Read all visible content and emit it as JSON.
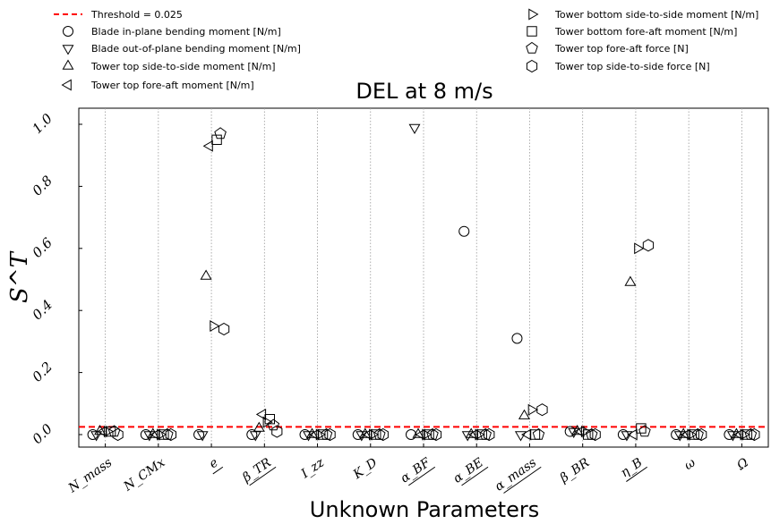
{
  "chart_data": {
    "type": "scatter",
    "title": "DEL at 8 m/s",
    "xlabel": "Unknown Parameters",
    "ylabel": "S^T",
    "ylim": [
      0,
      1.0
    ],
    "yticks": [
      "0.0",
      "0.2",
      "0.4",
      "0.6",
      "0.8",
      "1.0"
    ],
    "ytick_values": [
      0,
      0.2,
      0.4,
      0.6,
      0.8,
      1.0
    ],
    "grid": "vertical-dotted",
    "legend_placement": "top",
    "threshold": {
      "label": "Threshold = 0.025",
      "value": 0.025,
      "color": "#ff0000"
    },
    "categories": [
      "N_mass",
      "N_CMx",
      "e",
      "β_TR",
      "I_zz",
      "K_D",
      "α_BF",
      "α_BE",
      "α_mass",
      "β_BR",
      "η_B",
      "ω",
      "Ω"
    ],
    "underlined": [
      false,
      false,
      true,
      true,
      false,
      false,
      true,
      true,
      true,
      false,
      true,
      false,
      false
    ],
    "series": [
      {
        "name": "Blade in-plane bending moment [N/m]",
        "marker": "circle",
        "values": [
          0.0,
          0.0,
          0.0,
          0.0,
          0.0,
          0.0,
          0.0,
          0.655,
          0.31,
          0.01,
          0.0,
          0.0,
          0.0
        ]
      },
      {
        "name": "Blade out-of-plane bending moment [N/m]",
        "marker": "triangle-down",
        "values": [
          0.0,
          0.0,
          0.0,
          0.0,
          0.0,
          0.0,
          0.99,
          0.0,
          0.0,
          0.01,
          0.0,
          0.0,
          0.0
        ]
      },
      {
        "name": "Tower top side-to-side moment [N/m]",
        "marker": "triangle-up",
        "values": [
          0.01,
          0.0,
          0.51,
          0.02,
          0.0,
          0.0,
          0.0,
          0.0,
          0.06,
          0.01,
          0.49,
          0.0,
          0.0
        ]
      },
      {
        "name": "Tower top fore-aft moment [N/m]",
        "marker": "triangle-left",
        "values": [
          0.01,
          0.0,
          0.93,
          0.065,
          0.0,
          0.0,
          0.0,
          0.0,
          0.0,
          0.01,
          0.0,
          0.0,
          0.0
        ]
      },
      {
        "name": "Tower bottom side-to-side moment [N/m]",
        "marker": "triangle-right",
        "values": [
          0.01,
          0.0,
          0.35,
          0.04,
          0.0,
          0.0,
          0.0,
          0.0,
          0.08,
          0.01,
          0.6,
          0.0,
          0.0
        ]
      },
      {
        "name": "Tower bottom fore-aft moment [N/m]",
        "marker": "square",
        "values": [
          0.01,
          0.0,
          0.95,
          0.05,
          0.0,
          0.0,
          0.0,
          0.0,
          0.0,
          0.0,
          0.02,
          0.0,
          0.0
        ]
      },
      {
        "name": "Tower top fore-aft force [N]",
        "marker": "pentagon",
        "values": [
          0.01,
          0.0,
          0.97,
          0.03,
          0.0,
          0.0,
          0.0,
          0.0,
          0.0,
          0.0,
          0.01,
          0.0,
          0.0
        ]
      },
      {
        "name": "Tower top side-to-side force [N]",
        "marker": "hexagon",
        "values": [
          0.0,
          0.0,
          0.34,
          0.01,
          0.0,
          0.0,
          0.0,
          0.0,
          0.08,
          0.0,
          0.61,
          0.0,
          0.0
        ]
      }
    ]
  }
}
